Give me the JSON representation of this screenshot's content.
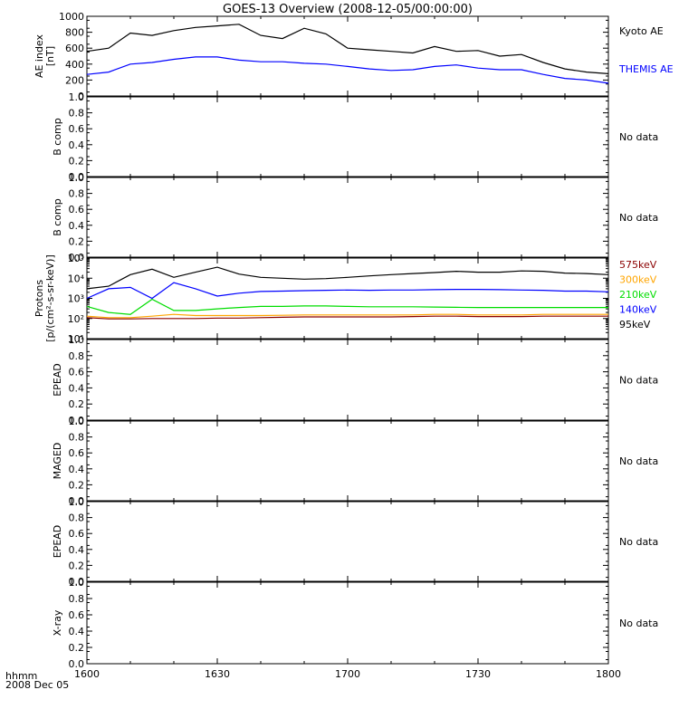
{
  "title": "GOES-13 Overview (2008-12-05/00:00:00)",
  "footer": {
    "line1": "hhmm",
    "line2": "2008 Dec 05"
  },
  "x_ticks": [
    "1600",
    "1630",
    "1700",
    "1730",
    "1800"
  ],
  "no_data_label": "No data",
  "chart_data": [
    {
      "type": "line",
      "ylabel": [
        "AE index",
        "[nT]"
      ],
      "ylim": [
        0,
        1000
      ],
      "yticks": [
        "0",
        "200",
        "400",
        "600",
        "800",
        "1000"
      ],
      "x": [
        "16:00",
        "16:05",
        "16:10",
        "16:15",
        "16:20",
        "16:25",
        "16:30",
        "16:35",
        "16:40",
        "16:45",
        "16:50",
        "16:55",
        "17:00",
        "17:05",
        "17:10",
        "17:15",
        "17:20",
        "17:25",
        "17:30",
        "17:35",
        "17:40",
        "17:45",
        "17:50",
        "17:55",
        "18:00"
      ],
      "series": [
        {
          "name": "Kyoto AE",
          "color": "#000000",
          "values": [
            560,
            600,
            790,
            760,
            820,
            860,
            880,
            900,
            760,
            720,
            850,
            780,
            600,
            580,
            560,
            540,
            620,
            560,
            570,
            500,
            520,
            420,
            340,
            300,
            280
          ]
        },
        {
          "name": "THEMIS AE",
          "color": "#0000ff",
          "values": [
            270,
            300,
            400,
            420,
            460,
            490,
            490,
            450,
            430,
            430,
            410,
            400,
            370,
            340,
            320,
            330,
            370,
            390,
            350,
            330,
            330,
            270,
            220,
            200,
            160
          ]
        }
      ]
    },
    {
      "type": "line",
      "ylabel": [
        "B comp"
      ],
      "ylim": [
        0,
        1
      ],
      "yticks": [
        "0.0",
        "0.2",
        "0.4",
        "0.6",
        "0.8",
        "1.0"
      ],
      "note": "No data"
    },
    {
      "type": "line",
      "ylabel": [
        "B comp"
      ],
      "ylim": [
        0,
        1
      ],
      "yticks": [
        "0.0",
        "0.2",
        "0.4",
        "0.6",
        "0.8",
        "1.0"
      ],
      "note": "No data"
    },
    {
      "type": "line",
      "ylabel": [
        "Protons",
        "[p/(cm²-s-sr-keV)]"
      ],
      "scale": "log",
      "ylim": [
        10,
        100000
      ],
      "yticks": [
        "10¹",
        "10²",
        "10³",
        "10⁴",
        "10⁵"
      ],
      "x": [
        "16:00",
        "16:05",
        "16:10",
        "16:15",
        "16:20",
        "16:25",
        "16:30",
        "16:35",
        "16:40",
        "16:45",
        "16:50",
        "16:55",
        "17:00",
        "17:05",
        "17:10",
        "17:15",
        "17:20",
        "17:25",
        "17:30",
        "17:35",
        "17:40",
        "17:45",
        "17:50",
        "17:55",
        "18:00"
      ],
      "series": [
        {
          "name": "575keV",
          "color": "#8b0000",
          "values": [
            110,
            95,
            95,
            100,
            100,
            100,
            105,
            105,
            110,
            115,
            120,
            120,
            120,
            120,
            120,
            125,
            130,
            130,
            125,
            125,
            125,
            130,
            130,
            130,
            130
          ]
        },
        {
          "name": "300keV",
          "color": "#ffa500",
          "values": [
            130,
            110,
            110,
            130,
            160,
            140,
            140,
            140,
            140,
            145,
            150,
            150,
            150,
            150,
            150,
            150,
            160,
            160,
            150,
            150,
            150,
            160,
            160,
            160,
            160
          ]
        },
        {
          "name": "210keV",
          "color": "#00dd00",
          "values": [
            400,
            200,
            160,
            900,
            250,
            250,
            300,
            350,
            400,
            400,
            420,
            420,
            400,
            380,
            380,
            380,
            370,
            360,
            350,
            350,
            350,
            350,
            350,
            350,
            350
          ]
        },
        {
          "name": "140keV",
          "color": "#0000ff",
          "values": [
            1000,
            3000,
            3500,
            1000,
            6000,
            3000,
            1300,
            1800,
            2200,
            2300,
            2400,
            2500,
            2600,
            2500,
            2600,
            2600,
            2700,
            2800,
            2800,
            2700,
            2600,
            2500,
            2300,
            2300,
            2100
          ]
        },
        {
          "name": "95keV",
          "color": "#000000",
          "values": [
            3000,
            4000,
            15000,
            28000,
            11000,
            20000,
            35000,
            16000,
            11000,
            10000,
            9000,
            9500,
            11000,
            13000,
            15000,
            17000,
            19000,
            22000,
            20000,
            20000,
            23000,
            22000,
            18000,
            17000,
            15000
          ]
        }
      ]
    },
    {
      "type": "line",
      "ylabel": [
        "EPEAD"
      ],
      "ylim": [
        0,
        1
      ],
      "yticks": [
        "0.0",
        "0.2",
        "0.4",
        "0.6",
        "0.8",
        "1.0"
      ],
      "note": "No data"
    },
    {
      "type": "line",
      "ylabel": [
        "MAGED"
      ],
      "ylim": [
        0,
        1
      ],
      "yticks": [
        "0.0",
        "0.2",
        "0.4",
        "0.6",
        "0.8",
        "1.0"
      ],
      "note": "No data"
    },
    {
      "type": "line",
      "ylabel": [
        "EPEAD"
      ],
      "ylim": [
        0,
        1
      ],
      "yticks": [
        "0.0",
        "0.2",
        "0.4",
        "0.6",
        "0.8",
        "1.0"
      ],
      "note": "No data"
    },
    {
      "type": "line",
      "ylabel": [
        "X-ray"
      ],
      "ylim": [
        0,
        1
      ],
      "yticks": [
        "0.0",
        "0.2",
        "0.4",
        "0.6",
        "0.8",
        "1.0"
      ],
      "note": "No data"
    }
  ]
}
